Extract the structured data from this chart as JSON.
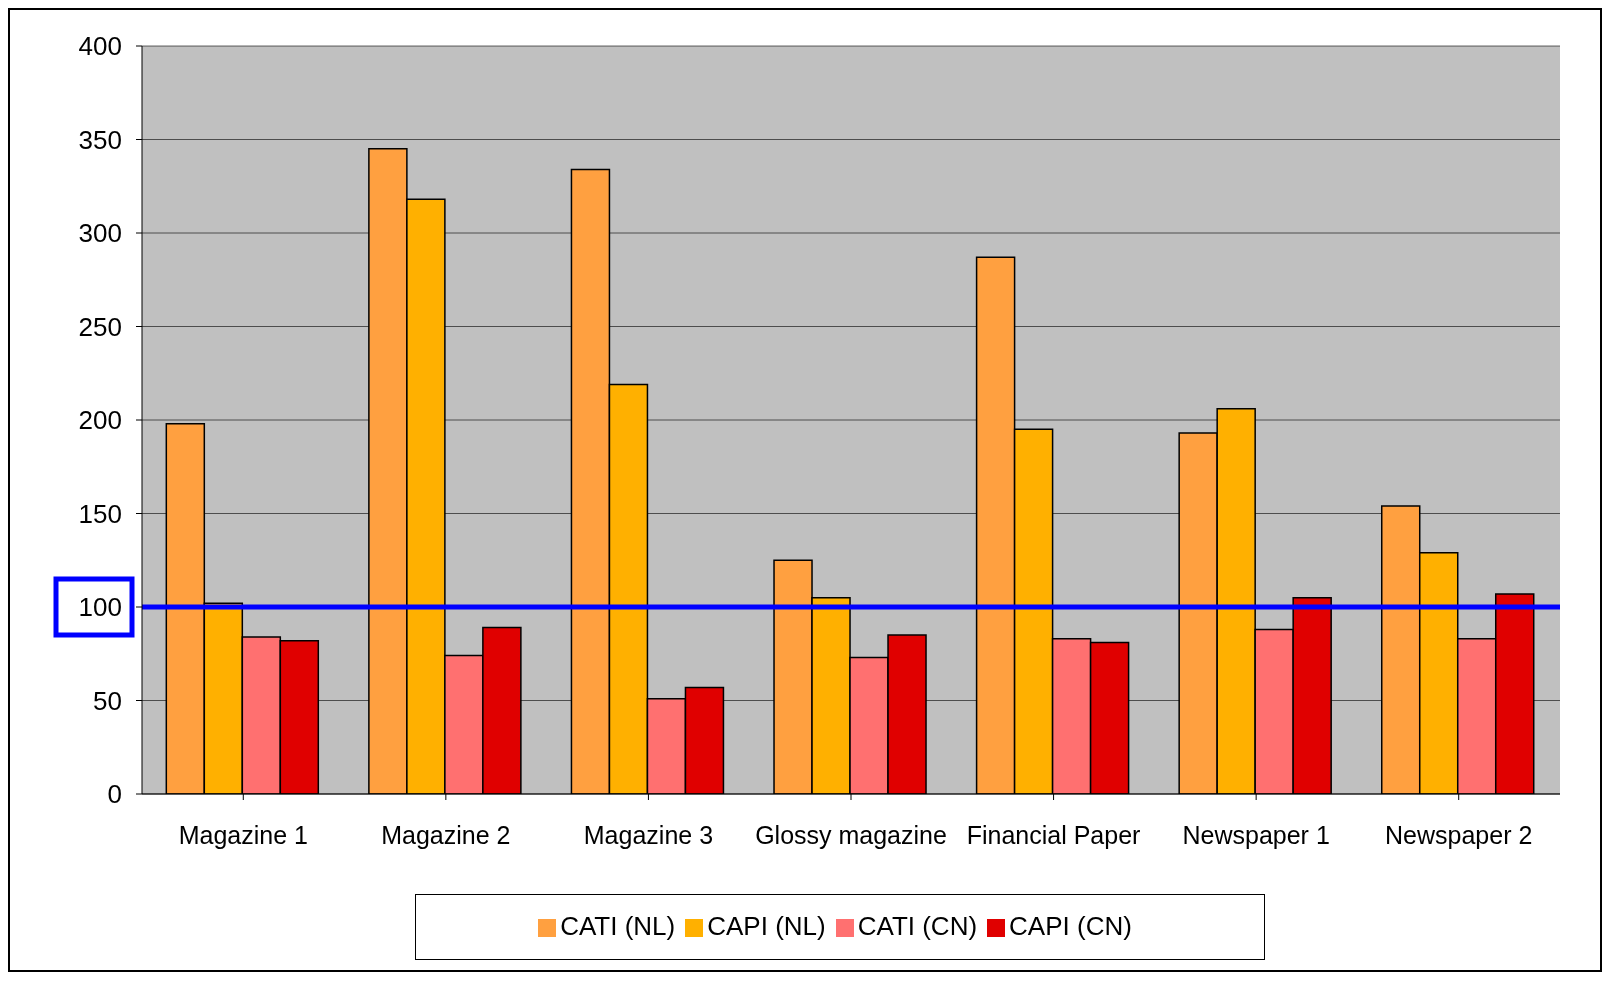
{
  "chart_data": {
    "type": "bar",
    "categories": [
      "Magazine 1",
      "Magazine 2",
      "Magazine 3",
      "Glossy magazine",
      "Financial Paper",
      "Newspaper 1",
      "Newspaper 2"
    ],
    "series": [
      {
        "name": "CATI (NL)",
        "color": "#ffa040",
        "values": [
          198,
          345,
          334,
          125,
          287,
          193,
          154
        ]
      },
      {
        "name": "CAPI (NL)",
        "color": "#ffb000",
        "values": [
          102,
          318,
          219,
          105,
          195,
          206,
          129
        ]
      },
      {
        "name": "CATI (CN)",
        "color": "#ff7070",
        "values": [
          84,
          74,
          51,
          73,
          83,
          88,
          83
        ]
      },
      {
        "name": "CAPI (CN)",
        "color": "#e00000",
        "values": [
          82,
          89,
          57,
          85,
          81,
          105,
          107
        ]
      }
    ],
    "ylim": [
      0,
      400
    ],
    "yticks": [
      0,
      50,
      100,
      150,
      200,
      250,
      300,
      350,
      400
    ],
    "grid": "y",
    "legend": "bottom",
    "ref_lines": [
      {
        "axis": "y",
        "value": 100,
        "color": "#0000ff"
      }
    ]
  }
}
